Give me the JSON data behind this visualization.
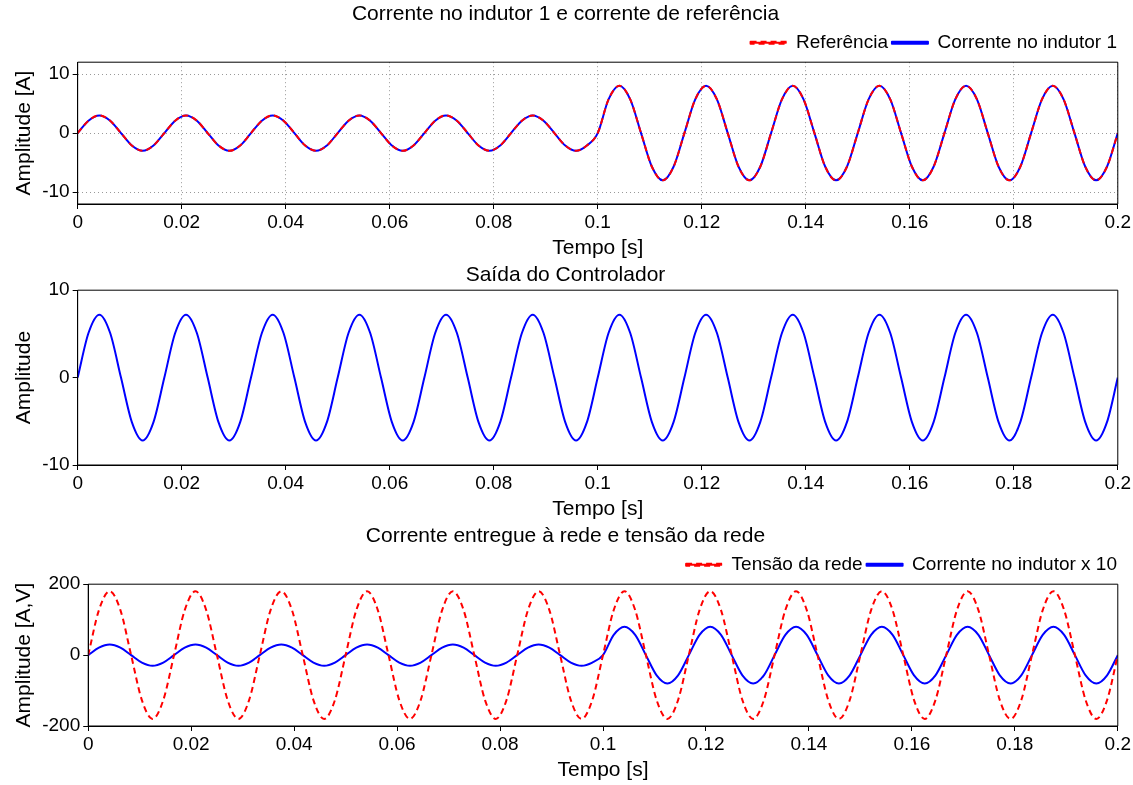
{
  "chart_data": [
    {
      "type": "line",
      "title": "Corrente no indutor 1 e corrente de referência",
      "xlabel": "Tempo [s]",
      "ylabel": "Amplitude [A]",
      "grid": true,
      "legend": "top right",
      "marker": "none",
      "xlim": [
        0,
        0.2
      ],
      "xticks": [
        0,
        0.02,
        0.04,
        0.06,
        0.08,
        0.1,
        0.12,
        0.14,
        0.16,
        0.18,
        0.2
      ],
      "ylim": [
        -12,
        12
      ],
      "yticks": [
        -10,
        0,
        10
      ],
      "x": [
        0,
        0.00208,
        0.00417,
        0.00625,
        0.00833,
        0.01042,
        0.0125,
        0.01458,
        0.01667,
        0.01875,
        0.02083,
        0.02292,
        0.025,
        0.02708,
        0.02917,
        0.03125,
        0.03333,
        0.03542,
        0.0375,
        0.03958,
        0.04167,
        0.04375,
        0.04583,
        0.04792,
        0.05,
        0.05208,
        0.05417,
        0.05625,
        0.05833,
        0.06042,
        0.0625,
        0.06458,
        0.06667,
        0.06875,
        0.07083,
        0.07292,
        0.075,
        0.07708,
        0.07917,
        0.08125,
        0.08333,
        0.08542,
        0.0875,
        0.08958,
        0.09167,
        0.09375,
        0.09583,
        0.09792,
        0.1,
        0.10208,
        0.10417,
        0.10625,
        0.10833,
        0.11042,
        0.1125,
        0.11458,
        0.11667,
        0.11875,
        0.12083,
        0.12292,
        0.125,
        0.12708,
        0.12917,
        0.13125,
        0.13333,
        0.13542,
        0.1375,
        0.13958,
        0.14167,
        0.14375,
        0.14583,
        0.14792,
        0.15,
        0.15208,
        0.15417,
        0.15625,
        0.15833,
        0.16042,
        0.1625,
        0.16458,
        0.16667,
        0.16875,
        0.17083,
        0.17292,
        0.175,
        0.17708,
        0.17917,
        0.18125,
        0.18333,
        0.18542,
        0.1875,
        0.18958,
        0.19167,
        0.19375,
        0.19583,
        0.19792,
        0.2
      ],
      "series": [
        {
          "name": "Corrente no indutor 1",
          "color": "#0000ff",
          "line_style": "solid",
          "values": [
            0,
            2.1,
            3,
            2.1,
            0,
            -2.1,
            -3,
            -2.1,
            0,
            2.1,
            3,
            2.1,
            0,
            -2.1,
            -3,
            -2.1,
            0,
            2.1,
            3,
            2.1,
            0,
            -2.1,
            -3,
            -2.1,
            0,
            2.1,
            3,
            2.1,
            0,
            -2.1,
            -3,
            -2.1,
            0,
            2.1,
            3,
            2.1,
            0,
            -2.1,
            -3,
            -2.1,
            0,
            2.1,
            3,
            2.1,
            0,
            -2.1,
            -3,
            -2.1,
            0,
            5.7,
            8,
            5.7,
            0,
            -5.7,
            -8,
            -5.7,
            0,
            5.7,
            8,
            5.7,
            0,
            -5.7,
            -8,
            -5.7,
            0,
            5.7,
            8,
            5.7,
            0,
            -5.7,
            -8,
            -5.7,
            0,
            5.7,
            8,
            5.7,
            0,
            -5.7,
            -8,
            -5.7,
            0,
            5.7,
            8,
            5.7,
            0,
            -5.7,
            -8,
            -5.7,
            0,
            5.7,
            8,
            5.7,
            0,
            -5.7,
            -8,
            -5.7,
            0
          ]
        },
        {
          "name": "Referência",
          "color": "#ff0000",
          "line_style": "dashed",
          "values": [
            0,
            2.1,
            3,
            2.1,
            0,
            -2.1,
            -3,
            -2.1,
            0,
            2.1,
            3,
            2.1,
            0,
            -2.1,
            -3,
            -2.1,
            0,
            2.1,
            3,
            2.1,
            0,
            -2.1,
            -3,
            -2.1,
            0,
            2.1,
            3,
            2.1,
            0,
            -2.1,
            -3,
            -2.1,
            0,
            2.1,
            3,
            2.1,
            0,
            -2.1,
            -3,
            -2.1,
            0,
            2.1,
            3,
            2.1,
            0,
            -2.1,
            -3,
            -2.1,
            0,
            5.7,
            8,
            5.7,
            0,
            -5.7,
            -8,
            -5.7,
            0,
            5.7,
            8,
            5.7,
            0,
            -5.7,
            -8,
            -5.7,
            0,
            5.7,
            8,
            5.7,
            0,
            -5.7,
            -8,
            -5.7,
            0,
            5.7,
            8,
            5.7,
            0,
            -5.7,
            -8,
            -5.7,
            0,
            5.7,
            8,
            5.7,
            0,
            -5.7,
            -8,
            -5.7,
            0,
            5.7,
            8,
            5.7,
            0,
            -5.7,
            -8,
            -5.7,
            0
          ]
        }
      ]
    },
    {
      "type": "line",
      "title": "Saída do Controlador",
      "xlabel": "Tempo [s]",
      "ylabel": "Amplitude",
      "marker": "none",
      "xlim": [
        0,
        0.2
      ],
      "xticks": [
        0,
        0.02,
        0.04,
        0.06,
        0.08,
        0.1,
        0.12,
        0.14,
        0.16,
        0.18,
        0.2
      ],
      "ylim": [
        -10,
        10
      ],
      "yticks": [
        -10,
        0,
        10
      ],
      "x": [
        0,
        0.00208,
        0.00417,
        0.00625,
        0.00833,
        0.01042,
        0.0125,
        0.01458,
        0.01667,
        0.01875,
        0.02083,
        0.02292,
        0.025,
        0.02708,
        0.02917,
        0.03125,
        0.03333,
        0.03542,
        0.0375,
        0.03958,
        0.04167,
        0.04375,
        0.04583,
        0.04792,
        0.05,
        0.05208,
        0.05417,
        0.05625,
        0.05833,
        0.06042,
        0.0625,
        0.06458,
        0.06667,
        0.06875,
        0.07083,
        0.07292,
        0.075,
        0.07708,
        0.07917,
        0.08125,
        0.08333,
        0.08542,
        0.0875,
        0.08958,
        0.09167,
        0.09375,
        0.09583,
        0.09792,
        0.1,
        0.10208,
        0.10417,
        0.10625,
        0.10833,
        0.11042,
        0.1125,
        0.11458,
        0.11667,
        0.11875,
        0.12083,
        0.12292,
        0.125,
        0.12708,
        0.12917,
        0.13125,
        0.13333,
        0.13542,
        0.1375,
        0.13958,
        0.14167,
        0.14375,
        0.14583,
        0.14792,
        0.15,
        0.15208,
        0.15417,
        0.15625,
        0.15833,
        0.16042,
        0.1625,
        0.16458,
        0.16667,
        0.16875,
        0.17083,
        0.17292,
        0.175,
        0.17708,
        0.17917,
        0.18125,
        0.18333,
        0.18542,
        0.1875,
        0.18958,
        0.19167,
        0.19375,
        0.19583,
        0.19792,
        0.2
      ],
      "series": [
        {
          "color": "#0000ff",
          "line_style": "solid",
          "values": [
            0,
            5.1,
            7.2,
            5.1,
            0,
            -5.1,
            -7.2,
            -5.1,
            0,
            5.1,
            7.2,
            5.1,
            0,
            -5.1,
            -7.2,
            -5.1,
            0,
            5.1,
            7.2,
            5.1,
            0,
            -5.1,
            -7.2,
            -5.1,
            0,
            5.1,
            7.2,
            5.1,
            0,
            -5.1,
            -7.2,
            -5.1,
            0,
            5.1,
            7.2,
            5.1,
            0,
            -5.1,
            -7.2,
            -5.1,
            0,
            5.1,
            7.2,
            5.1,
            0,
            -5.1,
            -7.2,
            -5.1,
            0,
            5.1,
            7.2,
            5.1,
            0,
            -5.1,
            -7.2,
            -5.1,
            0,
            5.1,
            7.2,
            5.1,
            0,
            -5.1,
            -7.2,
            -5.1,
            0,
            5.1,
            7.2,
            5.1,
            0,
            -5.1,
            -7.2,
            -5.1,
            0,
            5.1,
            7.2,
            5.1,
            0,
            -5.1,
            -7.2,
            -5.1,
            0,
            5.1,
            7.2,
            5.1,
            0,
            -5.1,
            -7.2,
            -5.1,
            0,
            5.1,
            7.2,
            5.1,
            0,
            -5.1,
            -7.2,
            -5.1,
            0
          ]
        }
      ]
    },
    {
      "type": "line",
      "title": "Corrente entregue à rede e tensão da rede",
      "xlabel": "Tempo [s]",
      "ylabel": "Amplitude [A,V]",
      "legend": "top right",
      "marker": "none",
      "xlim": [
        0,
        0.2
      ],
      "xticks": [
        0,
        0.02,
        0.04,
        0.06,
        0.08,
        0.1,
        0.12,
        0.14,
        0.16,
        0.18,
        0.2
      ],
      "ylim": [
        -200,
        200
      ],
      "yticks": [
        -200,
        0,
        200
      ],
      "x": [
        0,
        0.00208,
        0.00417,
        0.00625,
        0.00833,
        0.01042,
        0.0125,
        0.01458,
        0.01667,
        0.01875,
        0.02083,
        0.02292,
        0.025,
        0.02708,
        0.02917,
        0.03125,
        0.03333,
        0.03542,
        0.0375,
        0.03958,
        0.04167,
        0.04375,
        0.04583,
        0.04792,
        0.05,
        0.05208,
        0.05417,
        0.05625,
        0.05833,
        0.06042,
        0.0625,
        0.06458,
        0.06667,
        0.06875,
        0.07083,
        0.07292,
        0.075,
        0.07708,
        0.07917,
        0.08125,
        0.08333,
        0.08542,
        0.0875,
        0.08958,
        0.09167,
        0.09375,
        0.09583,
        0.09792,
        0.1,
        0.10208,
        0.10417,
        0.10625,
        0.10833,
        0.11042,
        0.1125,
        0.11458,
        0.11667,
        0.11875,
        0.12083,
        0.12292,
        0.125,
        0.12708,
        0.12917,
        0.13125,
        0.13333,
        0.13542,
        0.1375,
        0.13958,
        0.14167,
        0.14375,
        0.14583,
        0.14792,
        0.15,
        0.15208,
        0.15417,
        0.15625,
        0.15833,
        0.16042,
        0.1625,
        0.16458,
        0.16667,
        0.16875,
        0.17083,
        0.17292,
        0.175,
        0.17708,
        0.17917,
        0.18125,
        0.18333,
        0.18542,
        0.1875,
        0.18958,
        0.19167,
        0.19375,
        0.19583,
        0.19792,
        0.2
      ],
      "series": [
        {
          "name": "Corrente no indutor x 10",
          "color": "#0000ff",
          "line_style": "solid",
          "values": [
            0,
            21,
            30,
            21,
            0,
            -21,
            -30,
            -21,
            0,
            21,
            30,
            21,
            0,
            -21,
            -30,
            -21,
            0,
            21,
            30,
            21,
            0,
            -21,
            -30,
            -21,
            0,
            21,
            30,
            21,
            0,
            -21,
            -30,
            -21,
            0,
            21,
            30,
            21,
            0,
            -21,
            -30,
            -21,
            0,
            21,
            30,
            21,
            0,
            -21,
            -30,
            -21,
            0,
            57,
            80,
            57,
            0,
            -57,
            -80,
            -57,
            0,
            57,
            80,
            57,
            0,
            -57,
            -80,
            -57,
            0,
            57,
            80,
            57,
            0,
            -57,
            -80,
            -57,
            0,
            57,
            80,
            57,
            0,
            -57,
            -80,
            -57,
            0,
            57,
            80,
            57,
            0,
            -57,
            -80,
            -57,
            0,
            57,
            80,
            57,
            0,
            -57,
            -80,
            -57,
            0
          ]
        },
        {
          "name": "Tensão da rede",
          "color": "#ff0000",
          "line_style": "dashed",
          "values": [
            0,
            127,
            180,
            127,
            0,
            -127,
            -180,
            -127,
            0,
            127,
            180,
            127,
            0,
            -127,
            -180,
            -127,
            0,
            127,
            180,
            127,
            0,
            -127,
            -180,
            -127,
            0,
            127,
            180,
            127,
            0,
            -127,
            -180,
            -127,
            0,
            127,
            180,
            127,
            0,
            -127,
            -180,
            -127,
            0,
            127,
            180,
            127,
            0,
            -127,
            -180,
            -127,
            0,
            127,
            180,
            127,
            0,
            -127,
            -180,
            -127,
            0,
            127,
            180,
            127,
            0,
            -127,
            -180,
            -127,
            0,
            127,
            180,
            127,
            0,
            -127,
            -180,
            -127,
            0,
            127,
            180,
            127,
            0,
            -127,
            -180,
            -127,
            0,
            127,
            180,
            127,
            0,
            -127,
            -180,
            -127,
            0,
            127,
            180,
            127,
            0,
            -127,
            -180,
            -127,
            0
          ]
        }
      ]
    }
  ]
}
